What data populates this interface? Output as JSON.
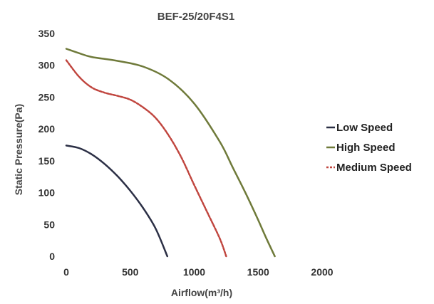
{
  "chart_data": {
    "type": "line",
    "title": "BEF-25/20F4S1",
    "xlabel": "Airflow(m³/h)",
    "ylabel": "Static Pressure(Pa)",
    "xlim": [
      0,
      2000
    ],
    "ylim": [
      0,
      350
    ],
    "x_ticks": [
      "0",
      "500",
      "1000",
      "1500",
      "2000"
    ],
    "y_ticks": [
      "0",
      "50",
      "100",
      "150",
      "200",
      "250",
      "300",
      "350"
    ],
    "grid": false,
    "legend_position": "right",
    "series": [
      {
        "name": "Low Speed",
        "color": "#2b2f45",
        "dash": "solid",
        "x": [
          0,
          100,
          200,
          300,
          400,
          500,
          600,
          700,
          790
        ],
        "y": [
          174,
          170,
          160,
          145,
          126,
          103,
          76,
          43,
          0
        ]
      },
      {
        "name": "High Speed",
        "color": "#6f7a3a",
        "dash": "solid",
        "x": [
          0,
          100,
          200,
          400,
          600,
          800,
          1000,
          1200,
          1300,
          1400,
          1500,
          1560,
          1630
        ],
        "y": [
          326,
          319,
          313,
          307,
          298,
          278,
          240,
          180,
          140,
          100,
          57,
          30,
          0
        ]
      },
      {
        "name": "Medium Speed",
        "color": "#c0453e",
        "dash": "dashed",
        "x": [
          0,
          100,
          200,
          300,
          400,
          500,
          600,
          700,
          800,
          900,
          1000,
          1100,
          1200,
          1250
        ],
        "y": [
          308,
          282,
          265,
          257,
          252,
          246,
          234,
          217,
          190,
          155,
          112,
          70,
          28,
          0
        ]
      }
    ]
  }
}
